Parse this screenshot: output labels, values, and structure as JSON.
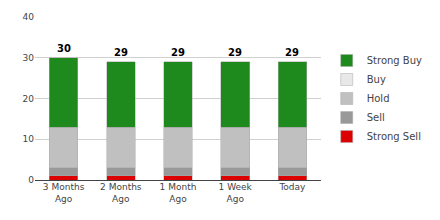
{
  "chart_data": {
    "type": "bar",
    "stacked": true,
    "categories": [
      "3 Months\nAgo",
      "2 Months\nAgo",
      "1 Month\nAgo",
      "1 Week\nAgo",
      "Today"
    ],
    "series": [
      {
        "name": "Strong Sell",
        "color": "#dd0000",
        "values": [
          1,
          1,
          1,
          1,
          1
        ]
      },
      {
        "name": "Sell",
        "color": "#999999",
        "values": [
          2,
          2,
          2,
          2,
          2
        ]
      },
      {
        "name": "Hold",
        "color": "#c0c0c0",
        "values": [
          10,
          10,
          10,
          10,
          10
        ]
      },
      {
        "name": "Buy",
        "color": "#e8e8e8",
        "values": [
          0,
          0,
          0,
          0,
          0
        ]
      },
      {
        "name": "Strong Buy",
        "color": "#1e8a1e",
        "values": [
          17,
          16,
          16,
          16,
          16
        ]
      }
    ],
    "totals": [
      30,
      29,
      29,
      29,
      29
    ],
    "ylim": [
      0,
      40
    ],
    "yticks": [
      0,
      10,
      20,
      30,
      40
    ],
    "grid": true,
    "legend": "right"
  }
}
